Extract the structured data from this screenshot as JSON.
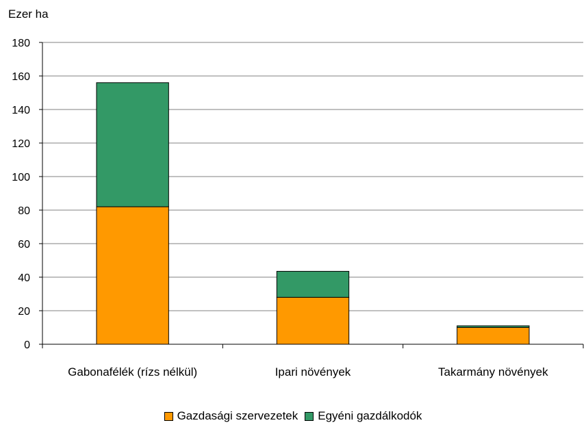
{
  "chart_data": {
    "type": "bar",
    "stacked": true,
    "ylabel": "Ezer ha",
    "categories": [
      "Gabonafélék (rízs nélkül)",
      "Ipari növények",
      "Takarmány növények"
    ],
    "series": [
      {
        "name": "Gazdasági szervezetek",
        "color": "#FF9900",
        "values": [
          82,
          28,
          10
        ]
      },
      {
        "name": "Egyéni gazdálkodók",
        "color": "#339966",
        "values": [
          74,
          15.5,
          1
        ]
      }
    ],
    "ylim": [
      0,
      180
    ],
    "yticks": [
      0,
      20,
      40,
      60,
      80,
      100,
      120,
      140,
      160,
      180
    ],
    "grid": true,
    "legend_position": "bottom"
  }
}
